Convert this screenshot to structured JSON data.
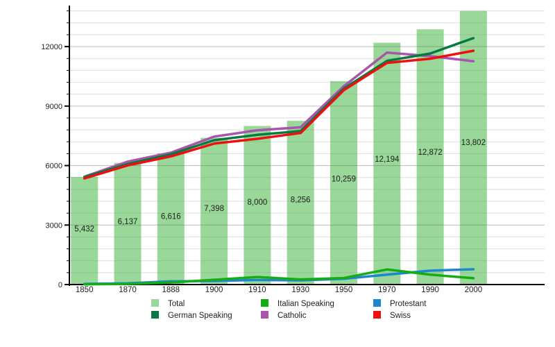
{
  "chart_data": {
    "type": "bar",
    "title": "",
    "xlabel": "",
    "ylabel": "",
    "categories": [
      "1850",
      "1870",
      "1888",
      "1900",
      "1910",
      "1930",
      "1950",
      "1970",
      "1990",
      "2000"
    ],
    "ylim": [
      0,
      14000
    ],
    "ytick_values": [
      0,
      3000,
      6000,
      9000,
      12000
    ],
    "ytick_labels": [
      "0",
      "3000",
      "6000",
      "9000",
      "12000"
    ],
    "grid": {
      "on": true,
      "minor_step": 600,
      "major_step": 3000
    },
    "bars": {
      "name": "Total",
      "color": "#99d899",
      "values": [
        5432,
        6137,
        6616,
        7398,
        8000,
        8256,
        10259,
        12194,
        12872,
        13802
      ],
      "labels": [
        "5,432",
        "6,137",
        "6,616",
        "7,398",
        "8,000",
        "8,256",
        "10,259",
        "12,194",
        "12,872",
        "13,802"
      ]
    },
    "series": [
      {
        "name": "Protestant",
        "color": "#1d86cd",
        "values": [
          30,
          60,
          160,
          180,
          230,
          210,
          290,
          500,
          700,
          770
        ]
      },
      {
        "name": "Italian Speaking",
        "color": "#15ad15",
        "values": [
          10,
          30,
          100,
          240,
          380,
          260,
          330,
          760,
          500,
          320
        ]
      },
      {
        "name": "Catholic",
        "color": "#a855ab",
        "values": [
          5440,
          6200,
          6650,
          7460,
          7780,
          7930,
          10000,
          11700,
          11520,
          11260
        ]
      },
      {
        "name": "German Speaking",
        "color": "#077a43",
        "values": [
          5420,
          6080,
          6570,
          7280,
          7550,
          7740,
          9880,
          11280,
          11650,
          12430
        ]
      },
      {
        "name": "Swiss",
        "color": "#ee0f0f",
        "values": [
          5350,
          6010,
          6460,
          7110,
          7350,
          7640,
          9800,
          11180,
          11390,
          11790
        ]
      }
    ],
    "legend": {
      "position": "bottom",
      "entries": [
        {
          "label": "Total",
          "color": "#99d899"
        },
        {
          "label": "German Speaking",
          "color": "#077a43"
        },
        {
          "label": "Italian Speaking",
          "color": "#15ad15"
        },
        {
          "label": "Catholic",
          "color": "#a855ab"
        },
        {
          "label": "Protestant",
          "color": "#1d86cd"
        },
        {
          "label": "Swiss",
          "color": "#ee0f0f"
        }
      ]
    }
  }
}
